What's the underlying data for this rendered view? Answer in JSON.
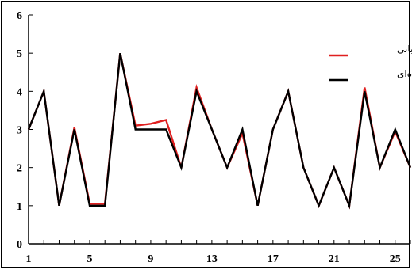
{
  "chart_data": {
    "type": "line",
    "x": [
      1,
      2,
      3,
      4,
      5,
      6,
      7,
      8,
      9,
      10,
      11,
      12,
      13,
      14,
      15,
      16,
      17,
      18,
      19,
      20,
      21,
      22,
      23,
      24,
      25,
      26
    ],
    "xticks": [
      1,
      5,
      9,
      13,
      17,
      21,
      25
    ],
    "xlim": [
      1,
      26
    ],
    "yticks": [
      0,
      1,
      2,
      3,
      4,
      5,
      6
    ],
    "ylim": [
      0,
      6
    ],
    "grid": false,
    "legend_position": "top-right",
    "series": [
      {
        "name": "محاسباتی",
        "color": "#e02020",
        "values": [
          3.0,
          4.0,
          1.0,
          3.05,
          1.05,
          1.05,
          5.0,
          3.1,
          3.15,
          3.25,
          2.0,
          4.1,
          3.0,
          2.0,
          2.9,
          1.0,
          3.0,
          4.0,
          2.0,
          1.0,
          2.0,
          1.0,
          4.1,
          2.0,
          2.95,
          2.0
        ]
      },
      {
        "name": "مشاهده‌ای",
        "color": "#000000",
        "values": [
          3.0,
          4.0,
          1.0,
          3.0,
          1.0,
          1.0,
          5.0,
          3.0,
          3.0,
          3.0,
          2.0,
          4.0,
          3.0,
          2.0,
          3.0,
          1.0,
          3.0,
          4.0,
          2.0,
          1.0,
          2.0,
          1.0,
          4.0,
          2.0,
          3.0,
          2.0
        ]
      }
    ]
  }
}
